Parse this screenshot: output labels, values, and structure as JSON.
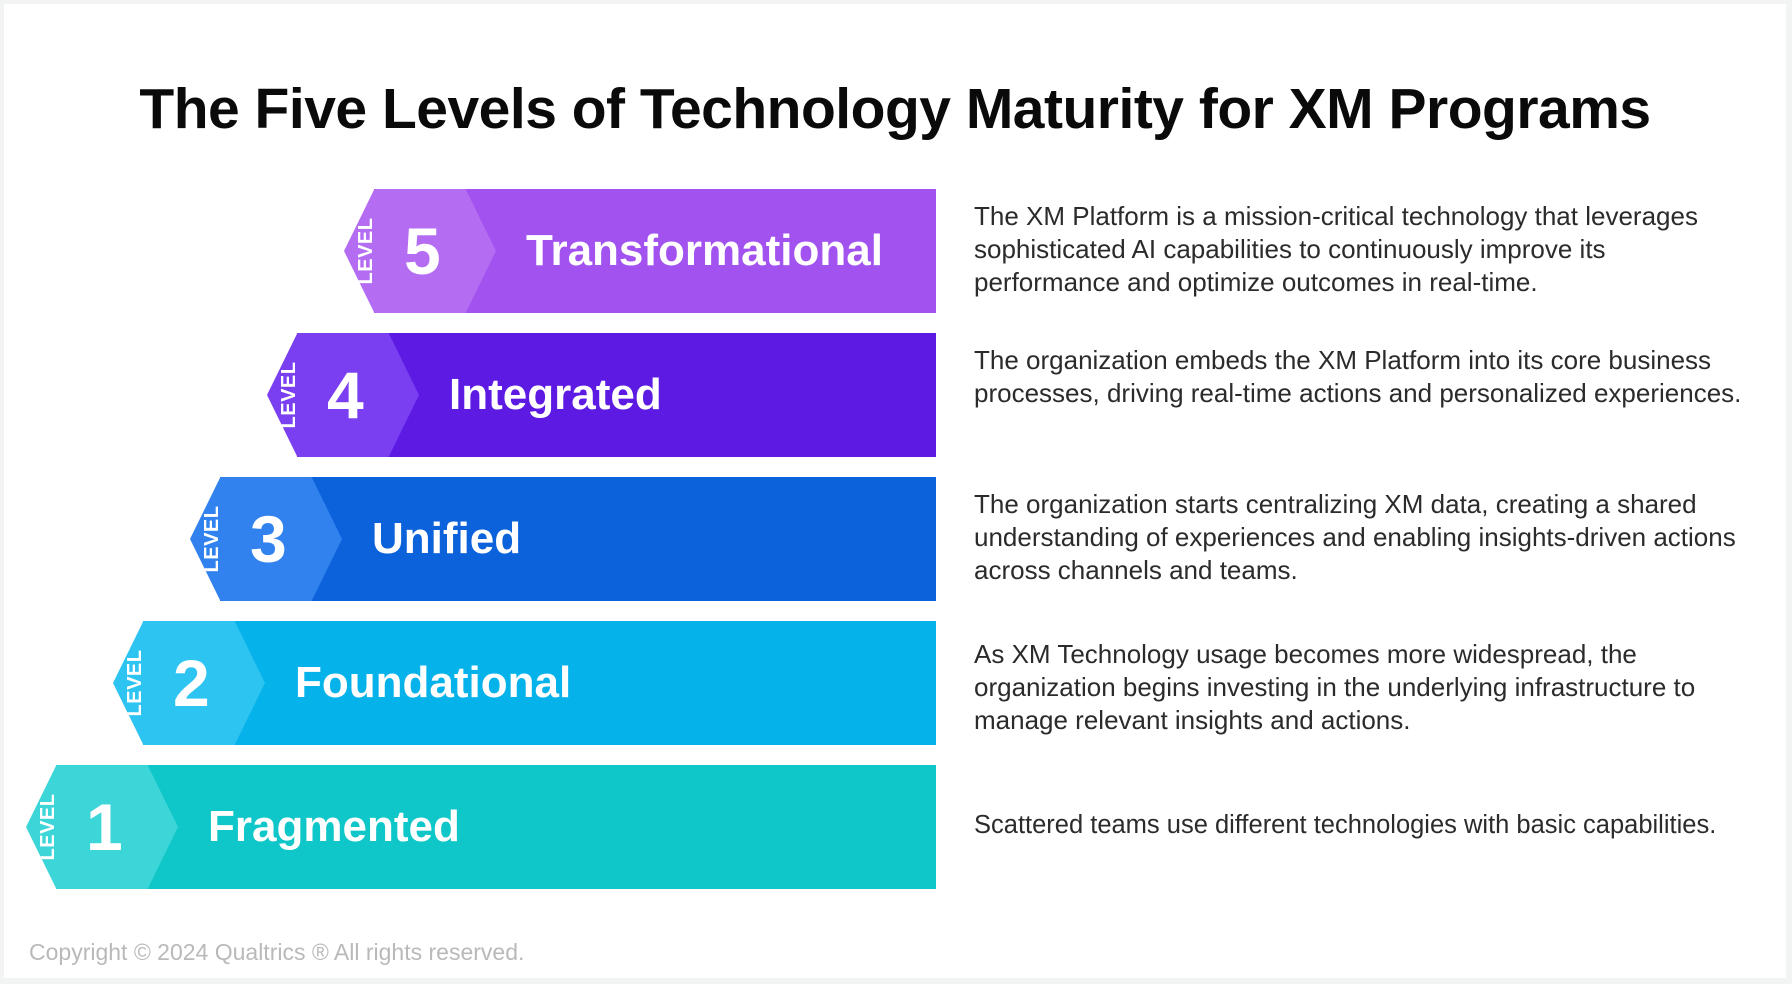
{
  "title": "The Five Levels of Technology Maturity for XM Programs",
  "level_word": "LEVEL",
  "levels": [
    {
      "number": "5",
      "name": "Transformational",
      "description": "The XM Platform is a mission-critical technology that leverages sophisticated AI capabilities to continuously improve its performance and optimize outcomes in real-time.",
      "band_color": "#a252ee",
      "badge_color": "#b46cf2"
    },
    {
      "number": "4",
      "name": "Integrated",
      "description": "The organization embeds the XM Platform into its core business processes, driving real-time actions and personalized experiences.",
      "band_color": "#5c1ae3",
      "badge_color": "#7a3ff0"
    },
    {
      "number": "3",
      "name": "Unified",
      "description": "The organization starts centralizing XM data, creating a shared understanding of experiences and enabling insights-driven actions across channels and teams.",
      "band_color": "#0b62da",
      "badge_color": "#3182ef"
    },
    {
      "number": "2",
      "name": "Foundational",
      "description": "As XM Technology usage becomes more widespread, the organization begins investing in the underlying infrastructure to manage relevant insights and actions.",
      "band_color": "#05b2ea",
      "badge_color": "#2ec4f2"
    },
    {
      "number": "1",
      "name": "Fragmented",
      "description": "Scattered teams use different technologies with basic capabilities.",
      "band_color": "#0fc6c8",
      "badge_color": "#3dd6d8"
    }
  ],
  "copyright": "Copyright © 2024 Qualtrics ® All rights reserved."
}
